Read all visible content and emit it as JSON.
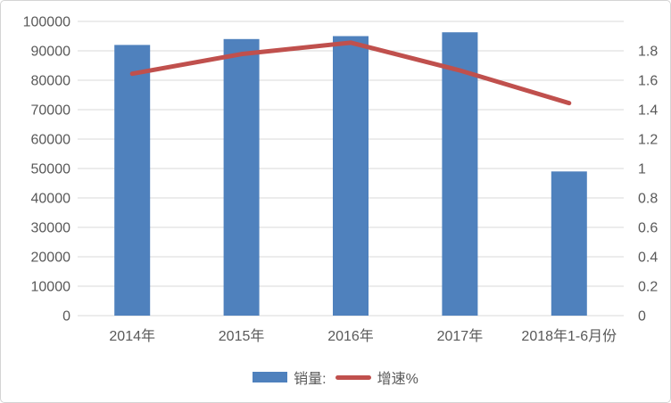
{
  "chart_data": {
    "type": "combo-bar-line",
    "title": "",
    "categories": [
      "2014年",
      "2015年",
      "2016年",
      "2017年",
      "2018年1-6月份"
    ],
    "series": [
      {
        "name": "销量:",
        "type": "bar",
        "axis": "left",
        "values": [
          92000,
          94000,
          95000,
          96300,
          49000
        ],
        "color": "#4f81bd"
      },
      {
        "name": "增速%",
        "type": "line",
        "axis": "right",
        "values": [
          1.48,
          1.6,
          1.67,
          1.5,
          1.3
        ],
        "color": "#c0504d"
      }
    ],
    "left_axis": {
      "min": 0,
      "max": 100000,
      "step": 10000,
      "tick_labels": [
        "0",
        "10000",
        "20000",
        "30000",
        "40000",
        "50000",
        "60000",
        "70000",
        "80000",
        "90000",
        "100000"
      ]
    },
    "right_axis": {
      "min": 0,
      "max": 1.8,
      "step": 0.2,
      "tick_labels": [
        "0",
        "0.2",
        "0.4",
        "0.6",
        "0.8",
        "1",
        "1.2",
        "1.4",
        "1.6",
        "1.8"
      ]
    },
    "grid": true,
    "legend_position": "bottom"
  },
  "style": {
    "bar_color": "#4f81bd",
    "line_color": "#c0504d",
    "grid_color": "#d9d9d9",
    "text_color": "#595959",
    "border_color": "#d4d4d4",
    "background": "#ffffff"
  }
}
